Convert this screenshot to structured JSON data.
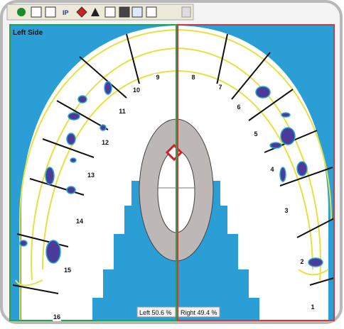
{
  "toolbar": {
    "ip_label": "IP"
  },
  "view": {
    "title": "Left Side",
    "teeth": [
      "1",
      "2",
      "3",
      "4",
      "5",
      "6",
      "7",
      "8",
      "9",
      "10",
      "11",
      "12",
      "13",
      "14",
      "15",
      "16"
    ],
    "left_force": "Left 50.6 %",
    "right_force": "Right 49.4 %"
  }
}
